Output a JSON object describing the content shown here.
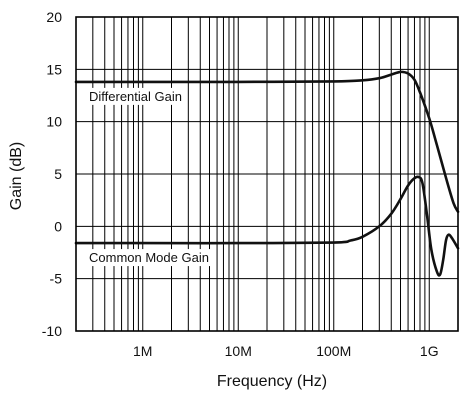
{
  "chart_data": {
    "type": "line",
    "xlabel": "Frequency (Hz)",
    "ylabel": "Gain (dB)",
    "x_scale": "log",
    "xlim": [
      200000,
      2000000000
    ],
    "ylim": [
      -10,
      20
    ],
    "grid": true,
    "x_ticks": [
      {
        "value": 1000000,
        "label": "1M"
      },
      {
        "value": 10000000,
        "label": "10M"
      },
      {
        "value": 100000000,
        "label": "100M"
      },
      {
        "value": 1000000000,
        "label": "1G"
      }
    ],
    "y_ticks": [
      {
        "value": 20,
        "label": "20"
      },
      {
        "value": 15,
        "label": "15"
      },
      {
        "value": 10,
        "label": "10"
      },
      {
        "value": 5,
        "label": "5"
      },
      {
        "value": 0,
        "label": "0"
      },
      {
        "value": -5,
        "label": "-5"
      },
      {
        "value": -10,
        "label": "-10"
      }
    ],
    "series": [
      {
        "name": "Differential Gain",
        "points": [
          [
            200000,
            13.8
          ],
          [
            1000000,
            13.8
          ],
          [
            10000000,
            13.8
          ],
          [
            100000000,
            13.85
          ],
          [
            200000000,
            13.95
          ],
          [
            300000000,
            14.15
          ],
          [
            400000000,
            14.5
          ],
          [
            500000000,
            14.75
          ],
          [
            600000000,
            14.6
          ],
          [
            700000000,
            14.0
          ],
          [
            800000000,
            12.8
          ],
          [
            1000000000,
            10.3
          ],
          [
            1200000000,
            7.8
          ],
          [
            1500000000,
            4.6
          ],
          [
            1800000000,
            2.2
          ],
          [
            2000000000,
            1.4
          ]
        ]
      },
      {
        "name": "Common Mode Gain",
        "points": [
          [
            200000,
            -1.6
          ],
          [
            1000000,
            -1.6
          ],
          [
            10000000,
            -1.6
          ],
          [
            100000000,
            -1.55
          ],
          [
            150000000,
            -1.35
          ],
          [
            200000000,
            -1.0
          ],
          [
            300000000,
            0.0
          ],
          [
            400000000,
            1.2
          ],
          [
            500000000,
            2.6
          ],
          [
            600000000,
            3.9
          ],
          [
            700000000,
            4.6
          ],
          [
            780000000,
            4.7
          ],
          [
            850000000,
            4.1
          ],
          [
            950000000,
            1.0
          ],
          [
            1050000000,
            -2.2
          ],
          [
            1200000000,
            -4.3
          ],
          [
            1300000000,
            -4.6
          ],
          [
            1400000000,
            -3.2
          ],
          [
            1500000000,
            -1.3
          ],
          [
            1600000000,
            -0.8
          ],
          [
            1750000000,
            -1.2
          ],
          [
            2000000000,
            -2.1
          ]
        ]
      }
    ]
  }
}
